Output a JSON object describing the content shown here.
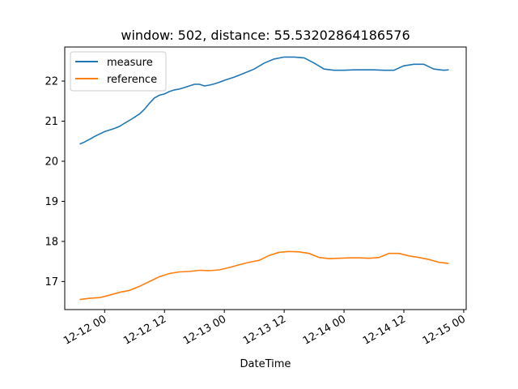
{
  "chart_data": {
    "type": "line",
    "title": "window: 502, distance: 55.53202864186576",
    "xlabel": "DateTime",
    "ylabel": "",
    "x_ticks": [
      "12-12 00",
      "12-12 12",
      "12-13 00",
      "12-13 12",
      "12-14 00",
      "12-14 12",
      "12-15 00"
    ],
    "y_ticks": [
      "17",
      "18",
      "19",
      "20",
      "21",
      "22"
    ],
    "xlim": [
      "2023-12-11T16:00",
      "2023-12-15T00:30"
    ],
    "ylim": [
      16.3,
      22.85
    ],
    "grid": false,
    "legend_position": "upper left",
    "colors": {
      "measure": "#1f77b4",
      "reference": "#ff7f0e"
    },
    "series": [
      {
        "name": "measure",
        "x": [
          "2023-12-11T19:00",
          "2023-12-11T20:00",
          "2023-12-11T21:00",
          "2023-12-11T22:00",
          "2023-12-11T23:00",
          "2023-12-12T00:00",
          "2023-12-12T01:00",
          "2023-12-12T02:00",
          "2023-12-12T03:00",
          "2023-12-12T04:00",
          "2023-12-12T05:00",
          "2023-12-12T06:00",
          "2023-12-12T07:00",
          "2023-12-12T08:00",
          "2023-12-12T09:00",
          "2023-12-12T10:00",
          "2023-12-12T11:00",
          "2023-12-12T12:00",
          "2023-12-12T13:00",
          "2023-12-12T14:00",
          "2023-12-12T15:00",
          "2023-12-12T16:00",
          "2023-12-12T17:00",
          "2023-12-12T18:00",
          "2023-12-12T19:00",
          "2023-12-12T20:00",
          "2023-12-12T21:00",
          "2023-12-12T22:00",
          "2023-12-12T23:00",
          "2023-12-13T00:00",
          "2023-12-13T02:00",
          "2023-12-13T04:00",
          "2023-12-13T06:00",
          "2023-12-13T08:00",
          "2023-12-13T10:00",
          "2023-12-13T12:00",
          "2023-12-13T14:00",
          "2023-12-13T16:00",
          "2023-12-13T18:00",
          "2023-12-13T20:00",
          "2023-12-13T22:00",
          "2023-12-14T00:00",
          "2023-12-14T02:00",
          "2023-12-14T04:00",
          "2023-12-14T06:00",
          "2023-12-14T08:00",
          "2023-12-14T10:00",
          "2023-12-14T12:00",
          "2023-12-14T14:00",
          "2023-12-14T16:00",
          "2023-12-14T18:00",
          "2023-12-14T20:00",
          "2023-12-14T21:00"
        ],
        "values": [
          20.43,
          20.48,
          20.55,
          20.62,
          20.68,
          20.74,
          20.78,
          20.82,
          20.87,
          20.95,
          21.02,
          21.1,
          21.18,
          21.3,
          21.45,
          21.58,
          21.65,
          21.68,
          21.74,
          21.78,
          21.8,
          21.84,
          21.88,
          21.92,
          21.92,
          21.88,
          21.9,
          21.93,
          21.97,
          22.02,
          22.1,
          22.2,
          22.3,
          22.45,
          22.55,
          22.6,
          22.6,
          22.58,
          22.45,
          22.3,
          22.27,
          22.27,
          22.28,
          22.28,
          22.28,
          22.27,
          22.27,
          22.38,
          22.42,
          22.42,
          22.3,
          22.27,
          22.28
        ]
      },
      {
        "name": "reference",
        "x": [
          "2023-12-11T19:00",
          "2023-12-11T21:00",
          "2023-12-11T23:00",
          "2023-12-12T01:00",
          "2023-12-12T03:00",
          "2023-12-12T05:00",
          "2023-12-12T07:00",
          "2023-12-12T09:00",
          "2023-12-12T11:00",
          "2023-12-12T13:00",
          "2023-12-12T15:00",
          "2023-12-12T17:00",
          "2023-12-12T19:00",
          "2023-12-12T21:00",
          "2023-12-12T23:00",
          "2023-12-13T01:00",
          "2023-12-13T03:00",
          "2023-12-13T05:00",
          "2023-12-13T07:00",
          "2023-12-13T09:00",
          "2023-12-13T11:00",
          "2023-12-13T13:00",
          "2023-12-13T15:00",
          "2023-12-13T17:00",
          "2023-12-13T19:00",
          "2023-12-13T21:00",
          "2023-12-13T23:00",
          "2023-12-14T01:00",
          "2023-12-14T03:00",
          "2023-12-14T05:00",
          "2023-12-14T07:00",
          "2023-12-14T09:00",
          "2023-12-14T11:00",
          "2023-12-14T13:00",
          "2023-12-14T15:00",
          "2023-12-14T17:00",
          "2023-12-14T19:00",
          "2023-12-14T21:00"
        ],
        "values": [
          16.55,
          16.58,
          16.6,
          16.66,
          16.73,
          16.78,
          16.88,
          17.0,
          17.12,
          17.2,
          17.24,
          17.25,
          17.28,
          17.27,
          17.29,
          17.35,
          17.42,
          17.48,
          17.53,
          17.65,
          17.73,
          17.75,
          17.74,
          17.7,
          17.6,
          17.57,
          17.58,
          17.59,
          17.59,
          17.58,
          17.6,
          17.7,
          17.7,
          17.64,
          17.6,
          17.55,
          17.48,
          17.45
        ]
      }
    ]
  }
}
